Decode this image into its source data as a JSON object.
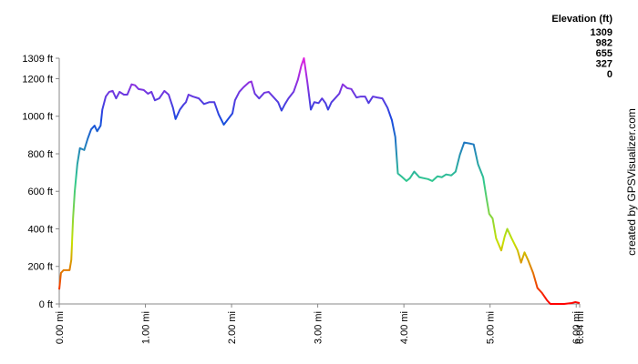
{
  "chart_data": {
    "type": "line",
    "legend": {
      "title": "Elevation (ft)",
      "stops": [
        1309,
        982,
        655,
        327,
        0
      ],
      "colors": [
        "#e020e0",
        "#1848e0",
        "#30c890",
        "#c8e000",
        "#ff0000"
      ]
    },
    "credit": "created by GPSVisualizer.com",
    "x": [
      0,
      0.02,
      0.05,
      0.12,
      0.14,
      0.16,
      0.18,
      0.21,
      0.24,
      0.29,
      0.33,
      0.37,
      0.41,
      0.44,
      0.48,
      0.5,
      0.54,
      0.58,
      0.62,
      0.66,
      0.7,
      0.75,
      0.79,
      0.84,
      0.88,
      0.92,
      0.98,
      1.03,
      1.07,
      1.11,
      1.16,
      1.22,
      1.27,
      1.32,
      1.35,
      1.4,
      1.44,
      1.47,
      1.5,
      1.55,
      1.62,
      1.68,
      1.74,
      1.8,
      1.85,
      1.91,
      1.96,
      2.01,
      2.04,
      2.09,
      2.14,
      2.2,
      2.23,
      2.27,
      2.32,
      2.38,
      2.43,
      2.48,
      2.54,
      2.58,
      2.62,
      2.66,
      2.72,
      2.77,
      2.81,
      2.84,
      2.88,
      2.92,
      2.96,
      3.01,
      3.05,
      3.09,
      3.12,
      3.16,
      3.2,
      3.25,
      3.29,
      3.34,
      3.39,
      3.45,
      3.5,
      3.55,
      3.59,
      3.64,
      3.69,
      3.75,
      3.81,
      3.86,
      3.9,
      3.93,
      3.97,
      4.03,
      4.07,
      4.12,
      4.18,
      4.23,
      4.28,
      4.33,
      4.39,
      4.44,
      4.49,
      4.55,
      4.6,
      4.65,
      4.7,
      4.76,
      4.81,
      4.86,
      4.92,
      4.96,
      4.99,
      5.03,
      5.07,
      5.13,
      5.17,
      5.2,
      5.25,
      5.32,
      5.36,
      5.4,
      5.44,
      5.5,
      5.55,
      5.6,
      5.66,
      5.7,
      5.86,
      5.95,
      5.99,
      6.04
    ],
    "values": [
      77,
      165,
      180,
      180,
      235,
      455,
      600,
      745,
      830,
      820,
      880,
      930,
      950,
      920,
      950,
      1035,
      1105,
      1130,
      1135,
      1095,
      1130,
      1115,
      1115,
      1170,
      1165,
      1145,
      1140,
      1120,
      1130,
      1085,
      1095,
      1135,
      1115,
      1045,
      985,
      1035,
      1060,
      1075,
      1115,
      1105,
      1095,
      1065,
      1075,
      1075,
      1010,
      955,
      985,
      1015,
      1085,
      1130,
      1155,
      1180,
      1185,
      1120,
      1095,
      1125,
      1130,
      1105,
      1075,
      1030,
      1065,
      1095,
      1130,
      1195,
      1270,
      1309,
      1180,
      1035,
      1075,
      1070,
      1095,
      1070,
      1035,
      1075,
      1095,
      1120,
      1170,
      1150,
      1145,
      1100,
      1105,
      1105,
      1070,
      1105,
      1100,
      1095,
      1045,
      980,
      890,
      695,
      680,
      655,
      670,
      705,
      675,
      670,
      665,
      655,
      680,
      675,
      690,
      685,
      705,
      795,
      860,
      855,
      850,
      745,
      675,
      560,
      480,
      455,
      350,
      285,
      360,
      400,
      350,
      285,
      220,
      275,
      235,
      165,
      85,
      60,
      20,
      0,
      0,
      5,
      10,
      5
    ],
    "xlim": [
      0,
      6.04
    ],
    "ylim": [
      0,
      1309
    ],
    "xticks": [
      {
        "value": 0,
        "label": "0.00 mi"
      },
      {
        "value": 1,
        "label": "1.00 mi"
      },
      {
        "value": 2,
        "label": "2.00 mi"
      },
      {
        "value": 3,
        "label": "3.00 mi"
      },
      {
        "value": 4,
        "label": "4.00 mi"
      },
      {
        "value": 5,
        "label": "5.00 mi"
      },
      {
        "value": 6,
        "label": "6.00 mi"
      },
      {
        "value": 6.04,
        "label": "6.04 mi"
      }
    ],
    "yticks": [
      {
        "value": 0,
        "label": "0 ft"
      },
      {
        "value": 200,
        "label": "200 ft"
      },
      {
        "value": 400,
        "label": "400 ft"
      },
      {
        "value": 600,
        "label": "600 ft"
      },
      {
        "value": 800,
        "label": "800 ft"
      },
      {
        "value": 1000,
        "label": "1000 ft"
      },
      {
        "value": 1200,
        "label": "1200 ft"
      },
      {
        "value": 1309,
        "label": "1309 ft"
      }
    ]
  }
}
